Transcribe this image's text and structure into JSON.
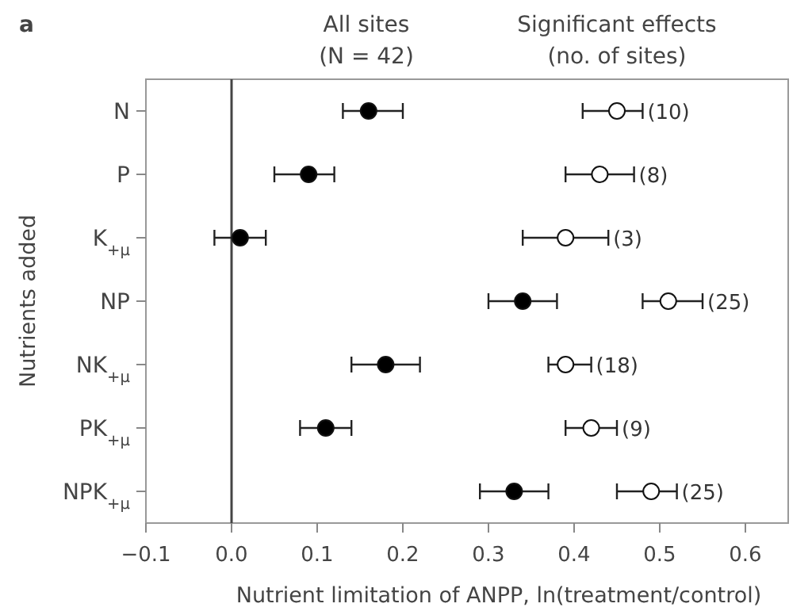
{
  "chart_data": {
    "type": "scatter",
    "orientation": "horizontal",
    "ylabel": "Nutrients added",
    "xlabel": "Nutrient limitation of ANPP, ln(treatment/control)",
    "categories": [
      "N",
      "P",
      "K$_{+μ}$",
      "NP",
      "NK$_{+μ}$",
      "PK$_{+μ}$",
      "NPK$_{+μ}$"
    ],
    "series": [
      {
        "color": "#000000",
        "values": [
          0.16,
          0.09,
          0.01,
          0.34,
          0.18,
          0.11,
          0.33
        ],
        "errors": [
          [
            0.13,
            0.2
          ],
          [
            0.05,
            0.12
          ],
          [
            -0.02,
            0.04
          ],
          [
            0.3,
            0.38
          ],
          [
            0.14,
            0.22
          ],
          [
            0.08,
            0.14
          ],
          [
            0.29,
            0.37
          ]
        ]
      },
      {
        "color": "#ffffff",
        "values": [
          0.45,
          0.43,
          0.39,
          0.51,
          0.39,
          0.42,
          0.49
        ],
        "errors": [
          [
            0.41,
            0.48
          ],
          [
            0.39,
            0.47
          ],
          [
            0.34,
            0.44
          ],
          [
            0.48,
            0.55
          ],
          [
            0.37,
            0.42
          ],
          [
            0.39,
            0.45
          ],
          [
            0.45,
            0.52
          ]
        ]
      }
    ],
    "xlim": [
      -0.1,
      0.65
    ],
    "xticks": [
      {
        "value": -0.1,
        "label": "−0.1"
      },
      {
        "value": 0,
        "label": "0.0"
      },
      0.1,
      0.2,
      0.3,
      0.4,
      0.5,
      0.6
    ],
    "ref_lines": [
      {
        "axis": "x",
        "value": 0,
        "color": "#444444"
      }
    ],
    "marker": "circle",
    "grid": false,
    "annotations": [
      "a",
      "All sites",
      "(N = 42)",
      "Significant effects",
      "(no. of sites)",
      {
        "text": "(10)",
        "x": 0.48,
        "y": "N"
      },
      {
        "text": "(8)",
        "x": 0.47,
        "y": "P"
      },
      {
        "text": "(3)",
        "x": 0.44,
        "y": "K$_{+μ}$"
      },
      {
        "text": "(25)",
        "x": 0.55,
        "y": "NP"
      },
      {
        "text": "(18)",
        "x": 0.42,
        "y": "NK$_{+μ}$"
      },
      {
        "text": "(9)",
        "x": 0.45,
        "y": "PK$_{+μ}$"
      },
      {
        "text": "(25)",
        "x": 0.52,
        "y": "NPK$_{+μ}$"
      }
    ]
  }
}
